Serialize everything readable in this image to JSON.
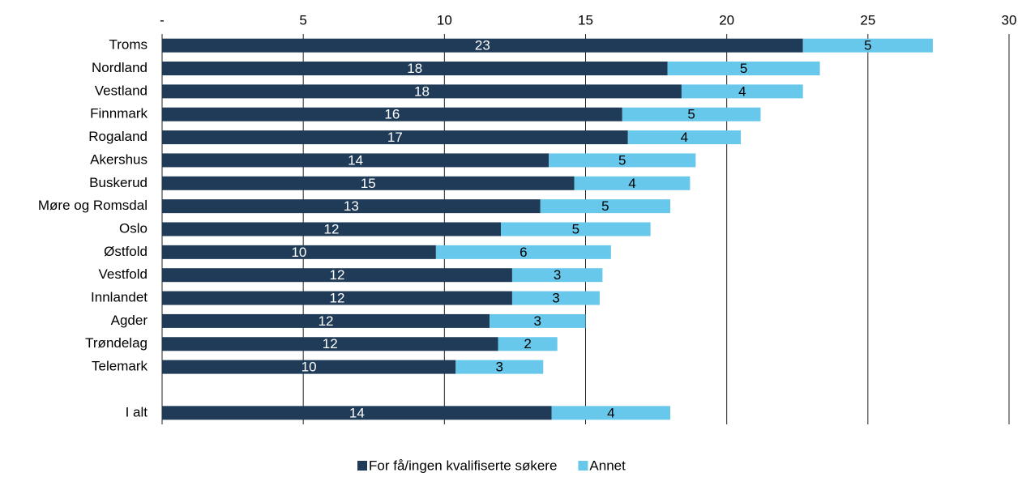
{
  "chart_data": {
    "type": "stacked-bar-horizontal",
    "categories": [
      "Troms",
      "Nordland",
      "Vestland",
      "Finnmark",
      "Rogaland",
      "Akershus",
      "Buskerud",
      "Møre og Romsdal",
      "Oslo",
      "Østfold",
      "Vestfold",
      "Innlandet",
      "Agder",
      "Trøndelag",
      "Telemark",
      null,
      "I alt"
    ],
    "series": [
      {
        "name": "For få/ingen kvalifiserte søkere",
        "color": "#1f3b57",
        "values": [
          22.7,
          17.9,
          18.4,
          16.3,
          16.5,
          13.7,
          14.6,
          13.4,
          12.0,
          9.7,
          12.4,
          12.4,
          11.6,
          11.9,
          10.4,
          null,
          13.8
        ],
        "value_labels": [
          "23",
          "18",
          "18",
          "16",
          "17",
          "14",
          "15",
          "13",
          "12",
          "10",
          "12",
          "12",
          "12",
          "12",
          "10",
          null,
          "14"
        ]
      },
      {
        "name": "Annet",
        "color": "#67c8eb",
        "values": [
          4.6,
          5.4,
          4.3,
          4.9,
          4.0,
          5.2,
          4.1,
          4.6,
          5.3,
          6.2,
          3.2,
          3.1,
          3.4,
          2.1,
          3.1,
          null,
          4.2
        ],
        "value_labels": [
          "5",
          "5",
          "4",
          "5",
          "4",
          "5",
          "4",
          "5",
          "5",
          "6",
          "3",
          "3",
          "3",
          "2",
          "3",
          null,
          "4"
        ]
      }
    ],
    "xlim": [
      0,
      30
    ],
    "xticks": [
      {
        "value": 0,
        "label": "-"
      },
      5,
      10,
      15,
      20,
      25,
      30
    ],
    "grid": true,
    "legend": "bottom"
  }
}
